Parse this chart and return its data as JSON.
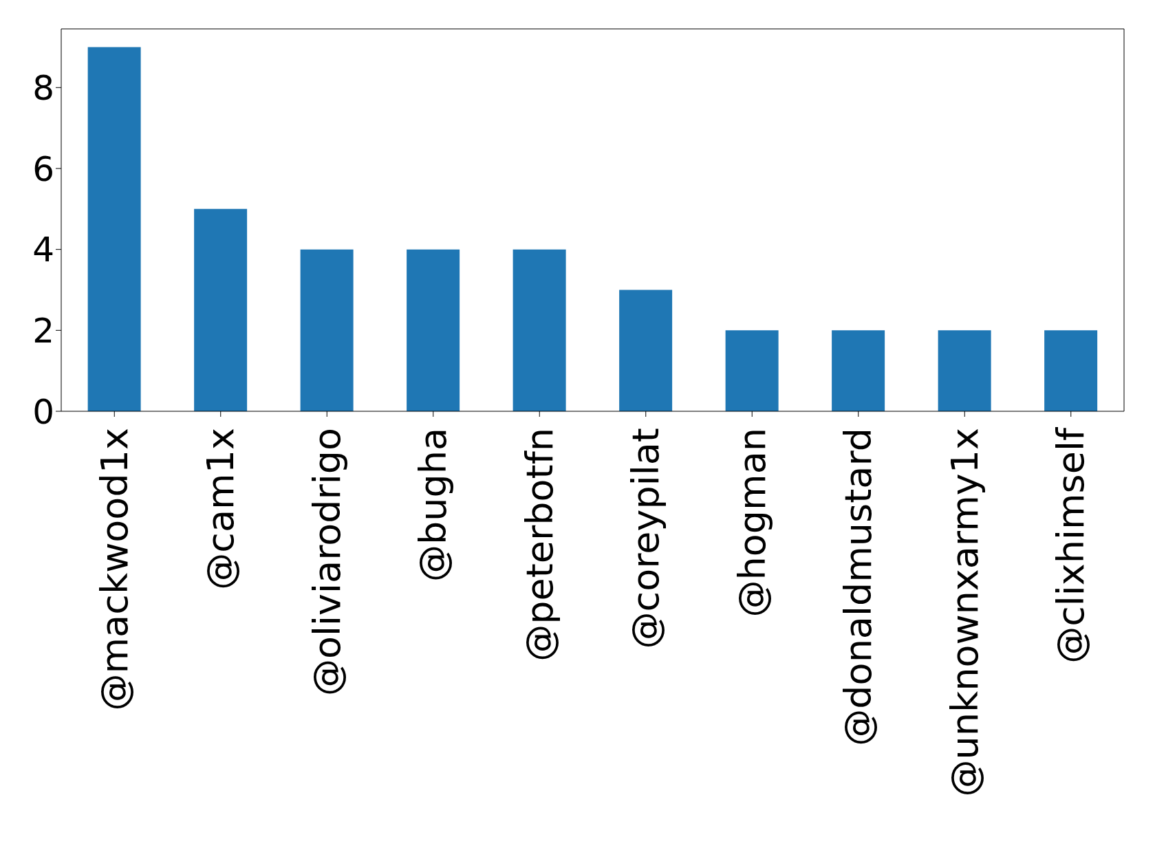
{
  "chart_data": {
    "type": "bar",
    "categories": [
      "@mackwood1x",
      "@cam1x",
      "@oliviarodrigo",
      "@bugha",
      "@peterbotfn",
      "@coreypilat",
      "@hogman",
      "@donaldmustard",
      "@unknownxarmy1x",
      "@clixhimself"
    ],
    "values": [
      9,
      5,
      4,
      4,
      4,
      3,
      2,
      2,
      2,
      2
    ],
    "color": "#1f77b4",
    "ylim": [
      0,
      9.45
    ],
    "yticks": [
      0,
      2,
      4,
      6,
      8
    ],
    "grid": false
  }
}
